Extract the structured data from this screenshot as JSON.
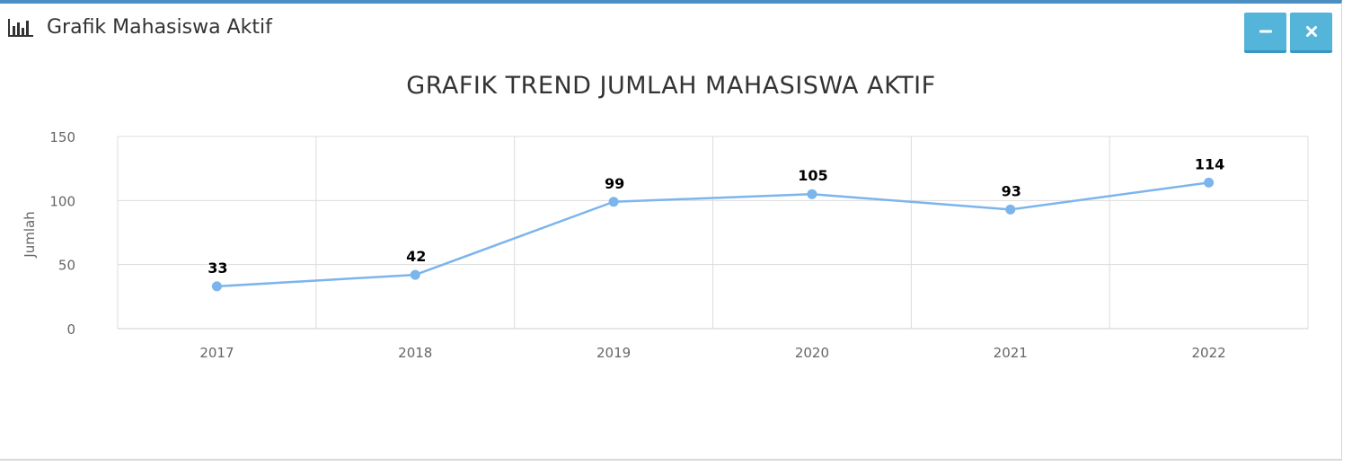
{
  "panel": {
    "title": "Grafik Mahasiswa Aktif",
    "icon": "bar-chart-icon",
    "buttons": [
      {
        "name": "minimize-button",
        "icon": "minus-icon"
      },
      {
        "name": "close-button",
        "icon": "close-icon"
      }
    ]
  },
  "colors": {
    "accent": "#4a8ec2",
    "button": "#54b4d9",
    "series": "#7cb5ec"
  },
  "chart_data": {
    "type": "line",
    "title": "GRAFIK TREND JUMLAH MAHASISWA AKTIF",
    "ylabel": "Jumlah",
    "xlabel": "",
    "categories": [
      "2017",
      "2018",
      "2019",
      "2020",
      "2021",
      "2022"
    ],
    "series": [
      {
        "values": [
          33,
          42,
          99,
          105,
          93,
          114
        ]
      }
    ],
    "ylim": [
      0,
      150
    ],
    "yticks": [
      0,
      50,
      100,
      150
    ],
    "data_labels": true,
    "grid": true,
    "legend": "none"
  }
}
